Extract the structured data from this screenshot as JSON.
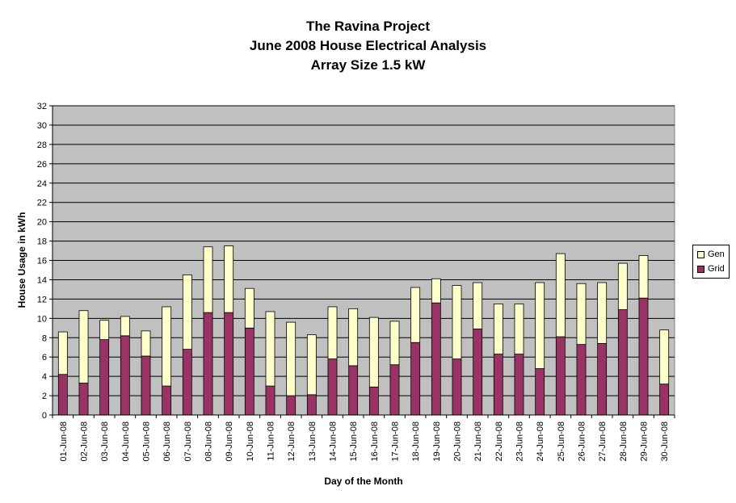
{
  "header": {
    "title_line1": "The Ravina Project",
    "title_line2": "June 2008 House Electrical Analysis",
    "title_line3": "Array Size 1.5 kW"
  },
  "colors": {
    "plot_background": "#c0c0c0",
    "grid": "#000000",
    "grid_series": "#993366",
    "gen_series": "#ffffcc"
  },
  "chart_data": {
    "type": "bar",
    "stacked": true,
    "title": "The Ravina Project June 2008 House Electrical Analysis Array Size 1.5 kW",
    "xlabel": "Day of the Month",
    "ylabel": "House Usage in kWh",
    "ylim": [
      0,
      32
    ],
    "y_ticks": [
      0,
      2,
      4,
      6,
      8,
      10,
      12,
      14,
      16,
      18,
      20,
      22,
      24,
      26,
      28,
      30,
      32
    ],
    "grid": true,
    "legend_position": "right",
    "categories": [
      "01-Jun-08",
      "02-Jun-08",
      "03-Jun-08",
      "04-Jun-08",
      "05-Jun-08",
      "06-Jun-08",
      "07-Jun-08",
      "08-Jun-08",
      "09-Jun-08",
      "10-Jun-08",
      "11-Jun-08",
      "12-Jun-08",
      "13-Jun-08",
      "14-Jun-08",
      "15-Jun-08",
      "16-Jun-08",
      "17-Jun-08",
      "18-Jun-08",
      "19-Jun-08",
      "20-Jun-08",
      "21-Jun-08",
      "22-Jun-08",
      "23-Jun-08",
      "24-Jun-08",
      "25-Jun-08",
      "26-Jun-08",
      "27-Jun-08",
      "28-Jun-08",
      "29-Jun-08",
      "30-Jun-08"
    ],
    "series": [
      {
        "name": "Grid",
        "values": [
          4.2,
          3.3,
          7.8,
          8.2,
          6.1,
          3.0,
          6.8,
          10.6,
          10.6,
          9.0,
          3.0,
          2.0,
          2.1,
          5.8,
          5.1,
          2.9,
          5.2,
          7.5,
          11.6,
          5.8,
          8.9,
          6.3,
          6.3,
          4.8,
          8.1,
          7.3,
          7.4,
          10.9,
          12.1,
          3.2
        ]
      },
      {
        "name": "Gen",
        "values": [
          4.4,
          7.5,
          2.0,
          2.0,
          2.6,
          8.2,
          7.7,
          6.8,
          6.9,
          4.1,
          7.7,
          7.6,
          6.2,
          5.4,
          5.9,
          7.2,
          4.5,
          5.7,
          2.5,
          7.6,
          4.8,
          5.2,
          5.2,
          8.9,
          8.6,
          6.3,
          6.3,
          4.8,
          4.4,
          5.6
        ]
      }
    ]
  }
}
